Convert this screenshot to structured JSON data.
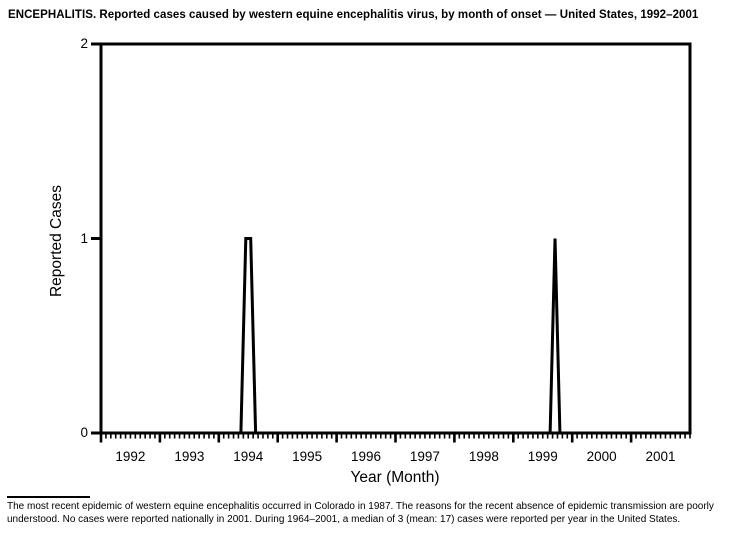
{
  "page": {
    "footnote_lines": [
      "The most recent epidemic of western equine encephalitis occurred in Colorado in 1987. The reasons for the recent absence of epidemic transmission are poorly",
      "understood. No cases were reported nationally in 2001. During 1964–2001, a median of 3 (mean: 17) cases were reported per year in the United States."
    ]
  },
  "chart_data": {
    "type": "line",
    "title": "ENCEPHALITIS. Reported cases caused by western equine encephalitis virus, by month of onset — United States, 1992–2001",
    "xlabel": "Year (Month)",
    "ylabel": "Reported Cases",
    "x_years": [
      "1992",
      "1993",
      "1994",
      "1995",
      "1996",
      "1997",
      "1998",
      "1999",
      "2000",
      "2001"
    ],
    "months_per_year": 12,
    "x_minor_tick_unit": "month",
    "ylim": [
      0,
      2
    ],
    "y_ticks": [
      "0",
      "1",
      "2"
    ],
    "grid": false,
    "frame": true,
    "legend": "none",
    "line_color": "#000000",
    "series": [
      {
        "name": "Reported cases",
        "baseline_value": 0,
        "nonzero_points": [
          {
            "year": "1994",
            "month": "Jun",
            "value": 1
          },
          {
            "year": "1994",
            "month": "Jul",
            "value": 1
          },
          {
            "year": "1999",
            "month": "Sep",
            "value": 1
          }
        ]
      }
    ]
  }
}
